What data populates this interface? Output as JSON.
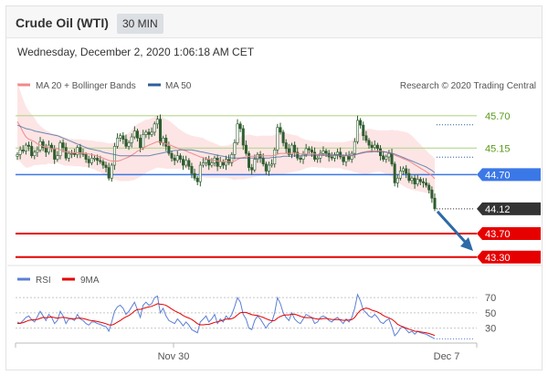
{
  "header": {
    "title": "Crude Oil (WTI)",
    "interval": "30 MIN"
  },
  "timestamp": "Wednesday, December 2, 2020 1:06:18 AM CET",
  "credit": "Research © 2020 Trading Central",
  "colors": {
    "bollinger": "#f08a8a",
    "band_fill": "#fde1e1",
    "ma50": "#2d5f9a",
    "candle": "#2f5d2f",
    "pivot": "#3b78e7",
    "support": "#e60000",
    "resistance": "#b5d78b",
    "rsi": "#5b7fd6",
    "rsi_ma": "#e60000",
    "arrow": "#2d6aa8"
  },
  "chart_data": [
    {
      "type": "candlestick",
      "legend": [
        {
          "name": "MA 20 + Bollinger Bands",
          "color": "#f08a8a"
        },
        {
          "name": "MA 50",
          "color": "#2d5f9a"
        }
      ],
      "ylim": [
        43.25,
        45.96
      ],
      "x_tick_labels": [
        "Nov 30",
        "Dec 7"
      ],
      "levels": [
        {
          "value": 45.7,
          "label": "45.70",
          "kind": "resistance"
        },
        {
          "value": 45.15,
          "label": "45.15",
          "kind": "resistance"
        },
        {
          "value": 44.7,
          "label": "44.70",
          "kind": "pivot"
        },
        {
          "value": 44.12,
          "label": "44.12",
          "kind": "last"
        },
        {
          "value": 43.7,
          "label": "43.70",
          "kind": "support"
        },
        {
          "value": 43.3,
          "label": "43.30",
          "kind": "support"
        }
      ],
      "closes": [
        45.04,
        45.12,
        45.1,
        45.2,
        45.18,
        45.02,
        45.08,
        45.12,
        45.26,
        45.16,
        45.08,
        45.2,
        45.14,
        44.96,
        45.02,
        45.24,
        45.16,
        44.98,
        45.06,
        45.06,
        45.04,
        45.16,
        45.06,
        45.04,
        44.96,
        44.9,
        44.98,
        44.98,
        44.94,
        44.92,
        44.86,
        44.82,
        44.64,
        44.86,
        45.18,
        45.32,
        45.36,
        45.3,
        45.18,
        45.24,
        45.34,
        45.44,
        45.32,
        45.16,
        45.38,
        45.42,
        45.38,
        45.42,
        45.56,
        45.64,
        45.24,
        45.32,
        45.18,
        45.06,
        44.98,
        44.94,
        45.02,
        44.96,
        44.86,
        44.94,
        44.84,
        44.72,
        44.64,
        44.58,
        44.86,
        44.9,
        44.96,
        44.86,
        44.9,
        44.98,
        44.84,
        44.92,
        44.86,
        44.96,
        44.9,
        45.04,
        45.24,
        45.56,
        45.48,
        45.2,
        45.06,
        44.82,
        44.78,
        44.96,
        45.04,
        44.98,
        44.88,
        44.76,
        44.86,
        44.88,
        45.12,
        45.5,
        45.42,
        45.24,
        45.14,
        45.04,
        45.2,
        45.08,
        44.98,
        44.96,
        45.04,
        45.14,
        45.12,
        45.08,
        44.96,
        44.98,
        45.06,
        45.1,
        45.06,
        45.0,
        44.98,
        45.04,
        45.08,
        45.0,
        44.92,
        45.02,
        44.96,
        45.06,
        45.26,
        45.62,
        45.54,
        45.36,
        45.28,
        45.2,
        45.16,
        45.2,
        45.14,
        45.02,
        44.96,
        45.0,
        45.06,
        44.88,
        44.56,
        44.64,
        44.76,
        44.8,
        44.72,
        44.6,
        44.64,
        44.54,
        44.62,
        44.58,
        44.56,
        44.52,
        44.44,
        44.3,
        44.12
      ],
      "ma20": [
        45.6,
        45.52,
        45.42,
        45.34,
        45.3,
        45.28,
        45.26,
        45.22,
        45.2,
        45.18,
        45.16,
        45.16,
        45.14,
        45.14,
        45.14,
        45.12,
        45.1,
        45.09,
        45.08,
        45.08,
        45.07,
        45.07,
        45.07,
        45.06,
        45.06,
        45.05,
        45.04,
        45.03,
        45.01,
        45.0,
        44.98,
        44.96,
        44.94,
        44.93,
        44.93,
        44.93,
        44.94,
        44.96,
        44.98,
        45.0,
        45.03,
        45.06,
        45.1,
        45.12,
        45.15,
        45.18,
        45.2,
        45.22,
        45.24,
        45.26,
        45.25,
        45.24,
        45.22,
        45.21,
        45.19,
        45.17,
        45.15,
        45.13,
        45.12,
        45.1,
        45.08,
        45.06,
        45.04,
        45.02,
        45.0,
        44.99,
        44.97,
        44.96,
        44.95,
        44.94,
        44.93,
        44.92,
        44.92,
        44.92,
        44.92,
        44.92,
        44.93,
        44.96,
        44.98,
        44.99,
        45.0,
        45.01,
        45.01,
        45.01,
        45.01,
        45.02,
        45.02,
        45.02,
        45.02,
        45.02,
        45.03,
        45.05,
        45.06,
        45.06,
        45.06,
        45.06,
        45.06,
        45.06,
        45.06,
        45.05,
        45.05,
        45.05,
        45.05,
        45.05,
        45.05,
        45.04,
        45.04,
        45.04,
        45.03,
        45.03,
        45.03,
        45.03,
        45.03,
        45.03,
        45.02,
        45.02,
        45.02,
        45.02,
        45.03,
        45.05,
        45.07,
        45.08,
        45.09,
        45.1,
        45.1,
        45.1,
        45.1,
        45.1,
        45.09,
        45.08,
        45.07,
        45.06,
        45.03,
        45.01,
        44.99,
        44.97,
        44.95,
        44.93,
        44.9,
        44.87,
        44.84,
        44.81,
        44.78,
        44.75,
        44.72,
        44.68,
        44.63
      ],
      "ma50": [
        45.54,
        45.52,
        45.5,
        45.48,
        45.47,
        45.46,
        45.44,
        45.43,
        45.42,
        45.41,
        45.4,
        45.39,
        45.38,
        45.37,
        45.36,
        45.34,
        45.32,
        45.3,
        45.28,
        45.26,
        45.24,
        45.22,
        45.2,
        45.18,
        45.16,
        45.14,
        45.13,
        45.12,
        45.11,
        45.1,
        45.08,
        45.07,
        45.06,
        45.05,
        45.04,
        45.03,
        45.02,
        45.02,
        45.02,
        45.02,
        45.02,
        45.02,
        45.02,
        45.02,
        45.02,
        45.02,
        45.02,
        45.03,
        45.04,
        45.05,
        45.06,
        45.07,
        45.08,
        45.09,
        45.1,
        45.11,
        45.11,
        45.12,
        45.12,
        45.12,
        45.12,
        45.12,
        45.11,
        45.1,
        45.09,
        45.08,
        45.07,
        45.06,
        45.05,
        45.04,
        45.03,
        45.02,
        45.01,
        45.0,
        44.99,
        44.98,
        44.98,
        44.98,
        44.98,
        44.98,
        44.98,
        44.98,
        44.98,
        44.98,
        44.98,
        44.98,
        44.98,
        44.98,
        44.98,
        44.99,
        44.99,
        45.0,
        45.0,
        45.01,
        45.01,
        45.01,
        45.01,
        45.02,
        45.02,
        45.02,
        45.02,
        45.03,
        45.03,
        45.03,
        45.03,
        45.03,
        45.03,
        45.03,
        45.03,
        45.03,
        45.03,
        45.03,
        45.03,
        45.03,
        45.03,
        45.03,
        45.03,
        45.03,
        45.04,
        45.05,
        45.06,
        45.07,
        45.08,
        45.08,
        45.09,
        45.09,
        45.09,
        45.09,
        45.09,
        45.08,
        45.07,
        45.06,
        45.05,
        45.03,
        45.01,
        44.99,
        44.97,
        44.95,
        44.93,
        44.91,
        44.89,
        44.87,
        44.85,
        44.83,
        44.8,
        44.77,
        44.73
      ],
      "band_width": [
        0.64,
        0.6,
        0.56,
        0.52,
        0.48,
        0.44,
        0.4,
        0.36,
        0.33,
        0.31,
        0.29,
        0.27,
        0.26,
        0.25,
        0.24,
        0.24,
        0.24,
        0.24,
        0.23,
        0.23,
        0.23,
        0.23,
        0.23,
        0.23,
        0.23,
        0.23,
        0.24,
        0.24,
        0.25,
        0.26,
        0.27,
        0.28,
        0.29,
        0.3,
        0.31,
        0.33,
        0.35,
        0.37,
        0.39,
        0.41,
        0.43,
        0.45,
        0.46,
        0.46,
        0.46,
        0.45,
        0.44,
        0.44,
        0.44,
        0.44,
        0.44,
        0.43,
        0.42,
        0.41,
        0.39,
        0.37,
        0.35,
        0.33,
        0.31,
        0.3,
        0.3,
        0.3,
        0.31,
        0.32,
        0.33,
        0.33,
        0.32,
        0.31,
        0.3,
        0.29,
        0.28,
        0.27,
        0.27,
        0.27,
        0.28,
        0.3,
        0.32,
        0.34,
        0.36,
        0.37,
        0.37,
        0.37,
        0.36,
        0.35,
        0.34,
        0.34,
        0.34,
        0.34,
        0.34,
        0.34,
        0.34,
        0.35,
        0.35,
        0.35,
        0.34,
        0.33,
        0.32,
        0.31,
        0.3,
        0.28,
        0.26,
        0.24,
        0.23,
        0.22,
        0.22,
        0.22,
        0.22,
        0.22,
        0.22,
        0.22,
        0.22,
        0.22,
        0.22,
        0.22,
        0.23,
        0.24,
        0.25,
        0.26,
        0.29,
        0.32,
        0.35,
        0.37,
        0.38,
        0.38,
        0.37,
        0.36,
        0.35,
        0.35,
        0.36,
        0.37,
        0.38,
        0.4,
        0.42,
        0.44,
        0.45,
        0.46,
        0.47,
        0.47,
        0.46,
        0.44,
        0.42,
        0.4,
        0.38,
        0.36,
        0.34,
        0.34,
        0.34
      ]
    },
    {
      "type": "line",
      "legend": [
        {
          "name": "RSI",
          "color": "#5b7fd6"
        },
        {
          "name": "9MA",
          "color": "#e60000"
        }
      ],
      "ylim": [
        20,
        75
      ],
      "y_tick_labels": [
        "70",
        "50",
        "30"
      ],
      "y_ticks": [
        70,
        50,
        30
      ],
      "rsi": [
        38,
        36,
        40,
        44,
        46,
        41,
        38,
        45,
        52,
        46,
        40,
        48,
        44,
        36,
        40,
        52,
        46,
        36,
        42,
        42,
        40,
        48,
        42,
        40,
        36,
        34,
        38,
        38,
        36,
        35,
        33,
        32,
        26,
        38,
        52,
        58,
        60,
        56,
        48,
        52,
        58,
        64,
        54,
        44,
        60,
        64,
        60,
        62,
        70,
        72,
        50,
        56,
        46,
        40,
        38,
        36,
        42,
        38,
        33,
        38,
        34,
        28,
        26,
        24,
        38,
        42,
        46,
        38,
        42,
        48,
        36,
        42,
        38,
        46,
        42,
        48,
        58,
        70,
        64,
        48,
        42,
        30,
        28,
        40,
        46,
        42,
        36,
        30,
        36,
        38,
        50,
        70,
        62,
        50,
        44,
        40,
        50,
        42,
        38,
        36,
        42,
        48,
        46,
        44,
        36,
        38,
        44,
        46,
        44,
        40,
        38,
        42,
        44,
        40,
        36,
        42,
        38,
        44,
        56,
        74,
        66,
        54,
        50,
        46,
        44,
        48,
        44,
        38,
        36,
        40,
        42,
        32,
        20,
        24,
        30,
        32,
        28,
        24,
        26,
        22,
        26,
        24,
        23,
        22,
        20,
        18,
        16
      ],
      "ma9": [
        36,
        36.4,
        37.2,
        38.6,
        40.2,
        40.8,
        41,
        41.4,
        42.8,
        44,
        43.6,
        44.2,
        44.6,
        43.8,
        43,
        43.8,
        44.2,
        43.6,
        42.8,
        42.6,
        42.2,
        43,
        43.2,
        42.6,
        41.6,
        40.4,
        39.8,
        39.4,
        38.6,
        37.8,
        36.8,
        35.8,
        34.4,
        34,
        35.6,
        37.8,
        40,
        42.6,
        44.8,
        46.6,
        49.2,
        52.4,
        54.6,
        54.6,
        55.6,
        57,
        57.8,
        58.6,
        60.2,
        62,
        61.4,
        61,
        59.8,
        57.6,
        55,
        52.6,
        50.8,
        49,
        46.6,
        44.6,
        43.2,
        41.4,
        38.8,
        35.8,
        34.4,
        34.4,
        34.8,
        35,
        36.2,
        37.6,
        38.2,
        39.4,
        40.6,
        42,
        41.6,
        42.4,
        44.2,
        47.4,
        50.2,
        50.6,
        50.6,
        49.2,
        47.6,
        47,
        46.6,
        45.4,
        44,
        42.4,
        40.8,
        39.6,
        40,
        43.2,
        45.4,
        46.8,
        47.4,
        47.4,
        48.2,
        48.2,
        47,
        45.6,
        44.4,
        43.8,
        43.8,
        43.6,
        42.6,
        41.8,
        42,
        42.6,
        42.8,
        42,
        41.4,
        41.2,
        41.2,
        41,
        40.2,
        40.4,
        40.6,
        41.2,
        44,
        49.2,
        53.2,
        55.2,
        56.2,
        55.4,
        53.6,
        52.4,
        51.2,
        49.2,
        46.6,
        44.8,
        43.4,
        41.6,
        38.6,
        35,
        33,
        31.4,
        30,
        28.6,
        27.4,
        26,
        25.6,
        25,
        24.4,
        23.8,
        23,
        21.8,
        20.4
      ]
    }
  ]
}
